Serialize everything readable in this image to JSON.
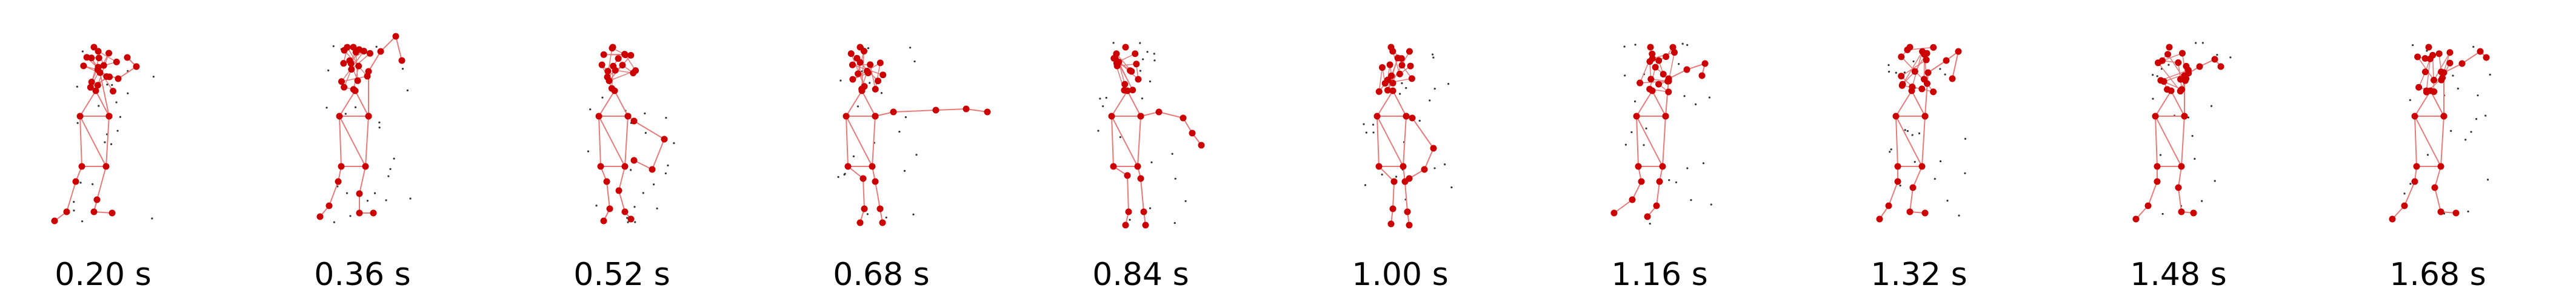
{
  "colors": {
    "joint": "#cc0000",
    "bone": "#e87a7a",
    "points": "#333333",
    "text": "#000000"
  },
  "frames": [
    {
      "label": "0.20 s"
    },
    {
      "label": "0.36 s"
    },
    {
      "label": "0.52 s"
    },
    {
      "label": "0.68 s"
    },
    {
      "label": "0.84 s"
    },
    {
      "label": "1.00 s"
    },
    {
      "label": "1.16 s"
    },
    {
      "label": "1.32 s"
    },
    {
      "label": "1.48 s"
    },
    {
      "label": "1.68 s"
    }
  ]
}
